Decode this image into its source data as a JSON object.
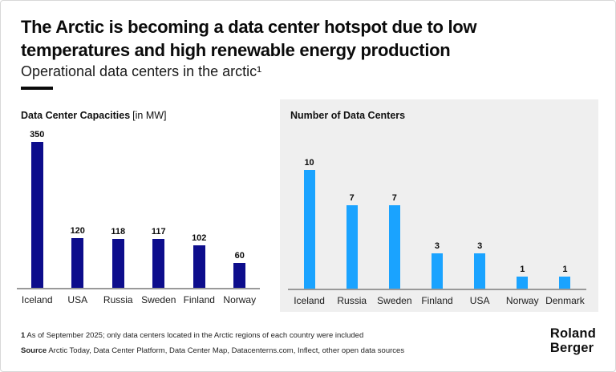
{
  "header": {
    "title_line1": "The Arctic is becoming a data center hotspot due to low",
    "title_line2": "temperatures and high renewable energy production",
    "subtitle": "Operational data centers in the arctic¹"
  },
  "colors": {
    "navy": "#0d0d8c",
    "sky_blue": "#1aa3ff",
    "panel_gray": "#efefef",
    "accent_ink": "#0b0b0b",
    "axis_gray": "#999999"
  },
  "chart_data": [
    {
      "type": "bar",
      "title": "Data Center Capacities",
      "unit_label": "[in MW]",
      "categories": [
        "Iceland",
        "USA",
        "Russia",
        "Sweden",
        "Finland",
        "Norway"
      ],
      "values": [
        350,
        120,
        118,
        117,
        102,
        60
      ],
      "ylim": [
        0,
        350
      ],
      "bar_color": "#0d0d8c",
      "value_labels": true,
      "grid": false,
      "legend": false
    },
    {
      "type": "bar",
      "title": "Number of Data Centers",
      "unit_label": "",
      "categories": [
        "Iceland",
        "Russia",
        "Sweden",
        "Finland",
        "USA",
        "Norway",
        "Denmark"
      ],
      "values": [
        10,
        7,
        7,
        3,
        3,
        1,
        1
      ],
      "ylim": [
        0,
        10
      ],
      "bar_color": "#1aa3ff",
      "value_labels": true,
      "grid": false,
      "legend": false
    }
  ],
  "footnote": {
    "marker": "1",
    "text": "As of September 2025; only data centers located in the Arctic regions of each country were included"
  },
  "source": {
    "label": "Source",
    "text": "Arctic Today, Data Center Platform, Data Center Map, Datacenterns.com, Inflect, other open data sources"
  },
  "logo": {
    "line1": "Roland",
    "line2": "Berger"
  }
}
